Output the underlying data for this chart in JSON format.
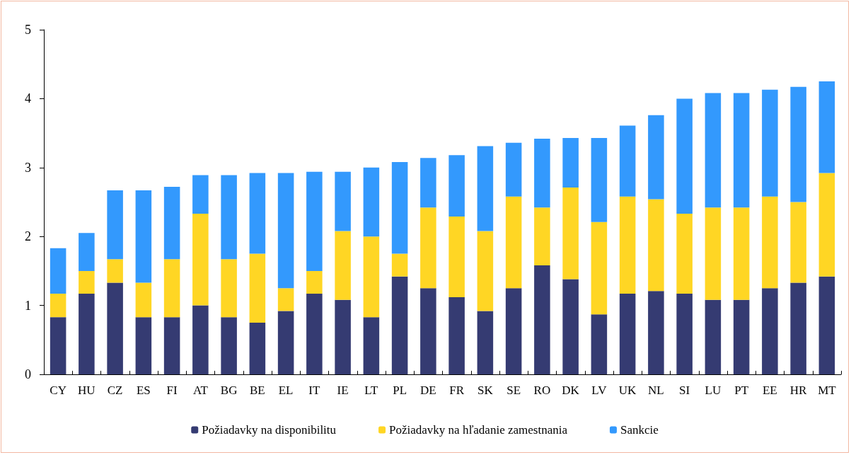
{
  "chart_data": {
    "type": "bar",
    "stacked": true,
    "categories": [
      "CY",
      "HU",
      "CZ",
      "ES",
      "FI",
      "AT",
      "BG",
      "BE",
      "EL",
      "IT",
      "IE",
      "LT",
      "PL",
      "DE",
      "FR",
      "SK",
      "SE",
      "RO",
      "DK",
      "LV",
      "UK",
      "NL",
      "SI",
      "LU",
      "PT",
      "EE",
      "HR",
      "MT"
    ],
    "series": [
      {
        "name": "Požiadavky na disponibilitu",
        "color": "#353b72",
        "values": [
          0.83,
          1.17,
          1.33,
          0.83,
          0.83,
          1.0,
          0.83,
          0.75,
          0.92,
          1.17,
          1.08,
          0.83,
          1.42,
          1.25,
          1.12,
          0.92,
          1.25,
          1.58,
          1.38,
          0.87,
          1.17,
          1.21,
          1.17,
          1.08,
          1.08,
          1.25,
          1.33,
          1.42
        ]
      },
      {
        "name": "Požiadavky na hľadanie zamestnania",
        "color": "#ffd624",
        "values": [
          0.34,
          0.33,
          0.34,
          0.5,
          0.84,
          1.33,
          0.84,
          1.0,
          0.33,
          0.33,
          1.0,
          1.17,
          0.33,
          1.17,
          1.17,
          1.16,
          1.33,
          0.84,
          1.33,
          1.34,
          1.41,
          1.33,
          1.16,
          1.34,
          1.34,
          1.33,
          1.17,
          1.5
        ]
      },
      {
        "name": "Sankcie",
        "color": "#3399fd",
        "values": [
          0.66,
          0.55,
          1.0,
          1.34,
          1.05,
          0.56,
          1.22,
          1.17,
          1.67,
          1.44,
          0.86,
          1.0,
          1.33,
          0.72,
          0.89,
          1.23,
          0.78,
          1.0,
          0.72,
          1.22,
          1.03,
          1.22,
          1.67,
          1.66,
          1.66,
          1.55,
          1.67,
          1.33
        ]
      }
    ],
    "ylim": [
      0,
      5
    ],
    "yticks": [
      0,
      1,
      2,
      3,
      4,
      5
    ],
    "grid": false,
    "legend": "bottom"
  }
}
